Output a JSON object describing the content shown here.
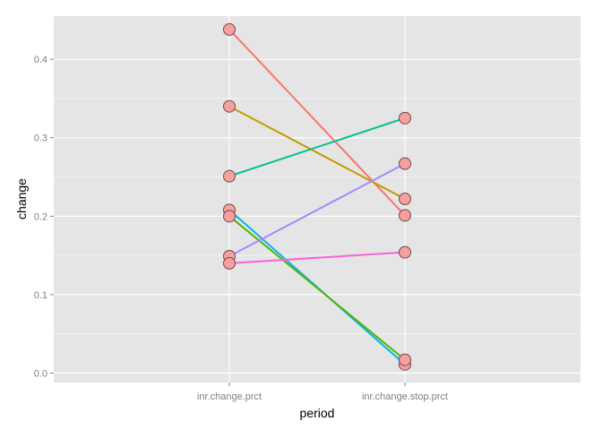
{
  "chart_data": {
    "type": "line",
    "xlabel": "period",
    "ylabel": "change",
    "categories": [
      "inr.change.prct",
      "inr.change.stop.prct"
    ],
    "ylim": [
      -0.012,
      0.455
    ],
    "yticks": [
      0.0,
      0.1,
      0.2,
      0.3,
      0.4
    ],
    "ytick_labels": [
      "0.0",
      "0.1",
      "0.2",
      "0.3",
      "0.4"
    ],
    "grid": true,
    "background": "#e5e5e5",
    "grid_major_color": "#ffffff",
    "grid_minor_color": "#f2f2f2",
    "point_fill": "#f8a0a0",
    "point_stroke": "#6b4a4a",
    "series": [
      {
        "color": "#f8766d",
        "values": [
          0.438,
          0.201
        ]
      },
      {
        "color": "#c49a00",
        "values": [
          0.34,
          0.222
        ]
      },
      {
        "color": "#00c094",
        "values": [
          0.251,
          0.325
        ]
      },
      {
        "color": "#00b6eb",
        "values": [
          0.208,
          0.011
        ]
      },
      {
        "color": "#53b400",
        "values": [
          0.2,
          0.017
        ]
      },
      {
        "color": "#a58aff",
        "values": [
          0.149,
          0.267
        ]
      },
      {
        "color": "#fb61d7",
        "values": [
          0.14,
          0.154
        ]
      }
    ]
  }
}
